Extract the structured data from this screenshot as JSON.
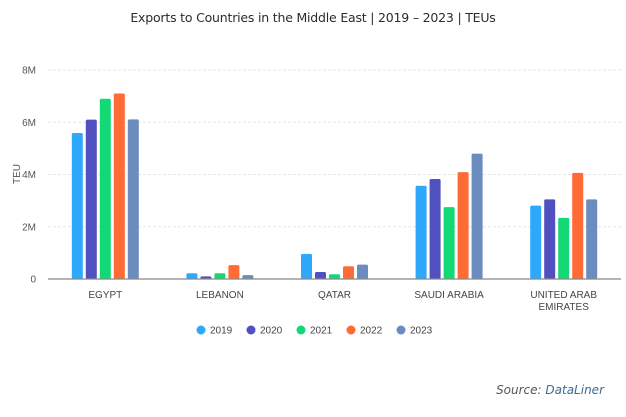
{
  "chart_data": {
    "type": "bar",
    "title": "Exports to Countries in the Middle East | 2019 – 2023 | TEUs",
    "xlabel": "",
    "ylabel": "TEU",
    "ylim": [
      0,
      8000000
    ],
    "yticks": [
      0,
      2000000,
      4000000,
      6000000,
      8000000
    ],
    "ytick_labels": [
      "0",
      "2M",
      "4M",
      "6M",
      "8M"
    ],
    "grid": true,
    "legend_position": "bottom-center",
    "categories": [
      [
        "EGYPT"
      ],
      [
        "LEBANON"
      ],
      [
        "QATAR"
      ],
      [
        "SAUDI ARABIA"
      ],
      [
        "UNITED ARAB",
        "EMIRATES"
      ]
    ],
    "series": [
      {
        "name": "2019",
        "color": "#2ea8fb",
        "values": [
          5590000,
          220000,
          960000,
          3570000,
          2810000
        ]
      },
      {
        "name": "2020",
        "color": "#5050c0",
        "values": [
          6100000,
          100000,
          270000,
          3830000,
          3050000
        ]
      },
      {
        "name": "2021",
        "color": "#12d976",
        "values": [
          6900000,
          220000,
          180000,
          2750000,
          2340000
        ]
      },
      {
        "name": "2022",
        "color": "#ff6b35",
        "values": [
          7100000,
          530000,
          490000,
          4090000,
          4060000
        ]
      },
      {
        "name": "2023",
        "color": "#6b8cbe",
        "values": [
          6110000,
          150000,
          550000,
          4800000,
          3050000
        ]
      }
    ]
  },
  "source": {
    "prefix": "Source: ",
    "name": "DataLiner"
  }
}
